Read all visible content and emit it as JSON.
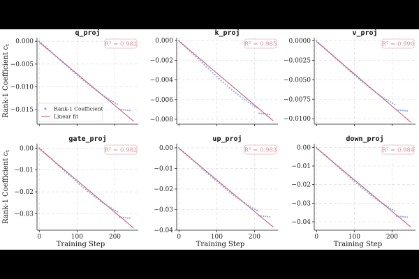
{
  "figure": {
    "ylabel": "Rank-1 Coefficient $c_t$",
    "ylabel_text": "Rank-1 Coefficient c",
    "ylabel_sub": "t",
    "xlabel": "Training Step",
    "legend": {
      "scatter_label": "Rank-1 Coefficient",
      "line_label": "Linear fit"
    },
    "colors": {
      "scatter": "#7b9fd8",
      "line": "#c8607a",
      "r2_text": "#d98c99",
      "r2_box": "#e8b4bf"
    }
  },
  "chart_data": [
    {
      "type": "scatter",
      "title": "q_proj",
      "r2_text": "R² = 0.982",
      "xlim": [
        -6,
        262
      ],
      "ylim": [
        -0.0182,
        0.0008
      ],
      "yticks": [
        0.0,
        -0.005,
        -0.01,
        -0.015
      ],
      "ytick_labels": [
        "0.000",
        "−0.005",
        "−0.010",
        "−0.015"
      ],
      "xticks": [
        0,
        100,
        200
      ],
      "xtick_labels": [
        "",
        "",
        ""
      ],
      "fit": {
        "slope": -6.95e-05,
        "intercept": -0.0002,
        "x_range": [
          0,
          250
        ]
      },
      "curve": {
        "end_value": -0.0152,
        "x_max": 240
      }
    },
    {
      "type": "scatter",
      "title": "k_proj",
      "r2_text": "R² = 0.985",
      "xlim": [
        -6,
        262
      ],
      "ylim": [
        -0.0085,
        0.0003
      ],
      "yticks": [
        0.0,
        -0.002,
        -0.004,
        -0.006,
        -0.008
      ],
      "ytick_labels": [
        "0.000",
        "−0.002",
        "−0.004",
        "−0.006",
        "−0.008"
      ],
      "xticks": [
        0,
        100,
        200
      ],
      "xtick_labels": [
        "",
        "",
        ""
      ],
      "fit": {
        "slope": -3.25e-05,
        "intercept": -5e-05,
        "x_range": [
          0,
          250
        ]
      },
      "curve": {
        "end_value": -0.0075,
        "x_max": 240
      }
    },
    {
      "type": "scatter",
      "title": "v_proj",
      "r2_text": "R² = 0.990",
      "xlim": [
        -6,
        262
      ],
      "ylim": [
        -0.0107,
        0.0004
      ],
      "yticks": [
        0.0,
        -0.0025,
        -0.005,
        -0.0075,
        -0.01
      ],
      "ytick_labels": [
        "0.0000",
        "−0.0025",
        "−0.0050",
        "−0.0075",
        "−0.0100"
      ],
      "xticks": [
        0,
        100,
        200
      ],
      "xtick_labels": [
        "",
        "",
        ""
      ],
      "fit": {
        "slope": -4.15e-05,
        "intercept": -0.0001,
        "x_range": [
          0,
          250
        ]
      },
      "curve": {
        "end_value": -0.009,
        "x_max": 240
      }
    },
    {
      "type": "scatter",
      "title": "gate_proj",
      "r2_text": "R² = 0.982",
      "xlim": [
        -6,
        262
      ],
      "ylim": [
        -0.0375,
        0.002
      ],
      "yticks": [
        0.0,
        -0.01,
        -0.02,
        -0.03
      ],
      "ytick_labels": [
        "0.00",
        "−0.01",
        "−0.02",
        "−0.03"
      ],
      "xticks": [
        0,
        100,
        200
      ],
      "xtick_labels": [
        "0",
        "100",
        "200"
      ],
      "fit": {
        "slope": -0.000145,
        "intercept": -0.0003,
        "x_range": [
          0,
          250
        ]
      },
      "curve": {
        "end_value": -0.032,
        "x_max": 240
      }
    },
    {
      "type": "scatter",
      "title": "up_proj",
      "r2_text": "R² = 0.983",
      "xlim": [
        -6,
        262
      ],
      "ylim": [
        -0.04,
        0.002
      ],
      "yticks": [
        0.0,
        -0.01,
        -0.02,
        -0.03,
        -0.04
      ],
      "ytick_labels": [
        "0.00",
        "−0.01",
        "−0.02",
        "−0.03",
        "−0.04"
      ],
      "xticks": [
        0,
        100,
        200
      ],
      "xtick_labels": [
        "0",
        "100",
        "200"
      ],
      "fit": {
        "slope": -0.000153,
        "intercept": -0.0003,
        "x_range": [
          0,
          250
        ]
      },
      "curve": {
        "end_value": -0.0335,
        "x_max": 240
      }
    },
    {
      "type": "scatter",
      "title": "down_proj",
      "r2_text": "R² = 0.984",
      "xlim": [
        -6,
        262
      ],
      "ylim": [
        -0.0445,
        0.002
      ],
      "yticks": [
        0.0,
        -0.01,
        -0.02,
        -0.03,
        -0.04
      ],
      "ytick_labels": [
        "0.00",
        "−0.01",
        "−0.02",
        "−0.03",
        "−0.04"
      ],
      "xticks": [
        0,
        100,
        200
      ],
      "xtick_labels": [
        "0",
        "100",
        "200"
      ],
      "fit": {
        "slope": -0.00017,
        "intercept": -0.0004,
        "x_range": [
          0,
          250
        ]
      },
      "curve": {
        "end_value": -0.0375,
        "x_max": 240
      }
    }
  ]
}
